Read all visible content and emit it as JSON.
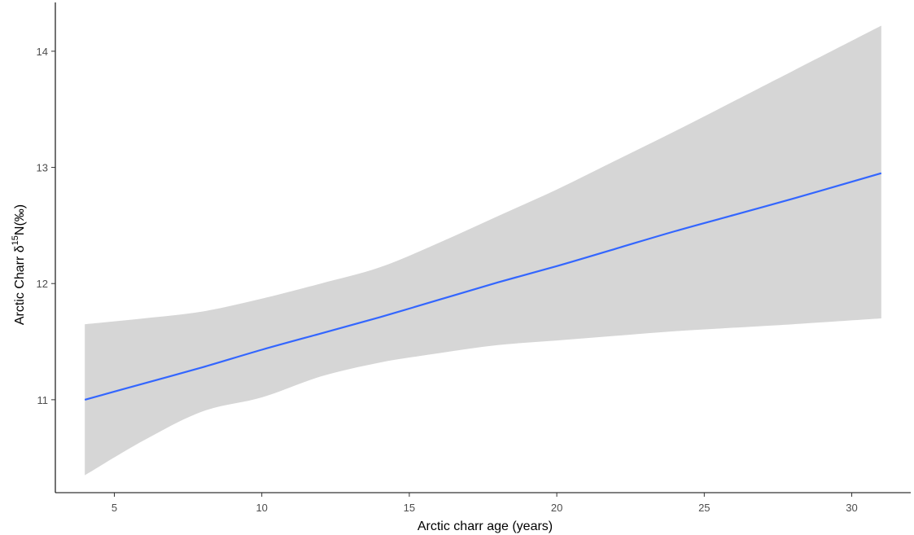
{
  "chart_data": {
    "type": "line",
    "title": "",
    "xlabel": "Arctic charr age (years)",
    "ylabel": {
      "prefix": "Arctic Charr δ",
      "superscript": "15",
      "suffix": "N(‰)"
    },
    "xlim": [
      3.0,
      32.0
    ],
    "ylim": [
      10.2,
      14.42
    ],
    "x_ticks": [
      5,
      10,
      15,
      20,
      25,
      30
    ],
    "y_ticks": [
      11,
      12,
      13,
      14
    ],
    "grid": false,
    "legend": "none",
    "series": [
      {
        "type": "smooth_line_with_confidence_band",
        "x": [
          4,
          6,
          8,
          10,
          12,
          14,
          16,
          18,
          20,
          22,
          24,
          26,
          28,
          31
        ],
        "y": [
          11.0,
          11.14,
          11.28,
          11.43,
          11.57,
          11.71,
          11.86,
          12.01,
          12.15,
          12.3,
          12.45,
          12.59,
          12.73,
          12.95
        ],
        "lower": [
          10.35,
          10.65,
          10.9,
          11.02,
          11.2,
          11.32,
          11.4,
          11.47,
          11.51,
          11.55,
          11.59,
          11.62,
          11.65,
          11.7
        ],
        "upper": [
          11.65,
          11.7,
          11.76,
          11.87,
          12.0,
          12.14,
          12.35,
          12.58,
          12.81,
          13.06,
          13.31,
          13.57,
          13.83,
          14.22
        ]
      }
    ],
    "colors": {
      "line": "#3366ff",
      "band": "#d6d6d6",
      "axis": "#000000",
      "tick_label": "#4d4d4d"
    }
  }
}
